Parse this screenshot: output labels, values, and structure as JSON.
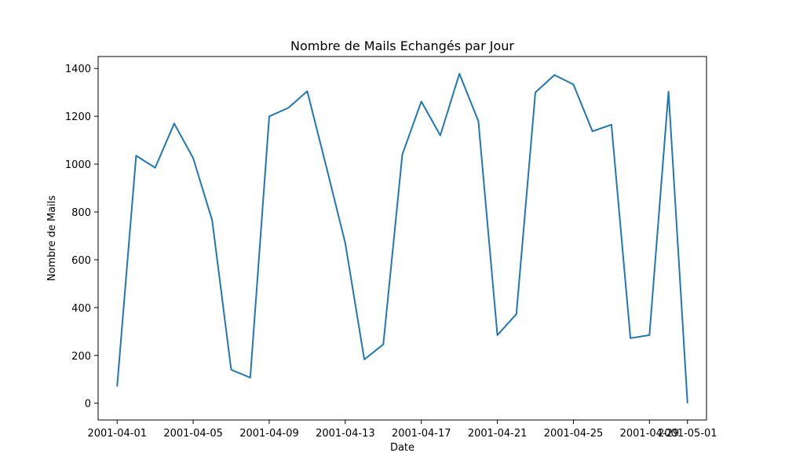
{
  "chart_data": {
    "type": "line",
    "title": "Nombre de Mails Echangés par Jour",
    "xlabel": "Date",
    "ylabel": "Nombre de Mails",
    "x": [
      "2001-04-01",
      "2001-04-02",
      "2001-04-03",
      "2001-04-04",
      "2001-04-05",
      "2001-04-06",
      "2001-04-07",
      "2001-04-08",
      "2001-04-09",
      "2001-04-10",
      "2001-04-11",
      "2001-04-12",
      "2001-04-13",
      "2001-04-14",
      "2001-04-15",
      "2001-04-16",
      "2001-04-17",
      "2001-04-18",
      "2001-04-19",
      "2001-04-20",
      "2001-04-21",
      "2001-04-22",
      "2001-04-23",
      "2001-04-24",
      "2001-04-25",
      "2001-04-26",
      "2001-04-27",
      "2001-04-28",
      "2001-04-29",
      "2001-04-30",
      "2001-05-01"
    ],
    "series": [
      {
        "values": [
          70,
          1035,
          985,
          1170,
          1025,
          765,
          140,
          107,
          1200,
          1235,
          1305,
          990,
          670,
          183,
          246,
          1040,
          1262,
          1120,
          1378,
          1180,
          285,
          373,
          1300,
          1373,
          1333,
          1137,
          1165,
          272,
          285,
          1303,
          0
        ],
        "color": "#1f77b4"
      }
    ],
    "xlim": [
      "2001-03-31",
      "2001-05-02"
    ],
    "ylim": [
      -70,
      1450
    ],
    "xticks": [
      "2001-04-01",
      "2001-04-05",
      "2001-04-09",
      "2001-04-13",
      "2001-04-17",
      "2001-04-21",
      "2001-04-25",
      "2001-04-29",
      "2001-05-01"
    ],
    "yticks": [
      0,
      200,
      400,
      600,
      800,
      1000,
      1200,
      1400
    ],
    "grid": false,
    "legend": "none"
  }
}
